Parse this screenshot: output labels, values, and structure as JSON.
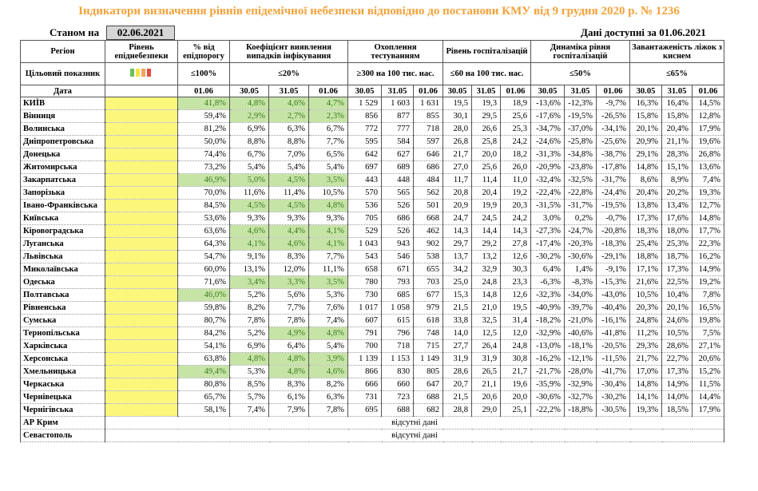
{
  "title": "Індикатори визначення рівнів епідемічної небезпеки відповідно до постанови КМУ від 9 грудня 2020 р. № 1236",
  "as_of_label": "Станом на",
  "as_of_date": "02.06.2021",
  "available_label": "Дані доступні за",
  "available_date": "01.06.2021",
  "headers": {
    "region": "Регіон",
    "level": "Рівень епіднебезпеки",
    "pct": "% від епідпорогу",
    "coef": "Коефіцієнт виявлення випадків інфікування",
    "tests": "Охоплення тестуванням",
    "hosp": "Рівень госпіталізацій",
    "dyn": "Динаміка рівня госпіталізацій",
    "beds": "Завантаженість ліжок з киснем",
    "target": "Цільовий показник",
    "date": "Дата",
    "t_pct": "≤100%",
    "t_coef": "≤20%",
    "t_tests": "≥300 на 100 тис. нас.",
    "t_hosp": "≤60 на 100 тис. нас.",
    "t_dyn": "≤50%",
    "t_beds": "≤65%"
  },
  "dates": {
    "pct": [
      "01.06"
    ],
    "coef": [
      "30.05",
      "31.05",
      "01.06"
    ],
    "tests": [
      "30.05",
      "31.05",
      "01.06"
    ],
    "hosp": [
      "30.05",
      "31.05",
      "01.06"
    ],
    "dyn": [
      "30.05",
      "31.05",
      "01.06"
    ],
    "beds": [
      "30.05",
      "31.05",
      "01.06"
    ]
  },
  "swatch_colors": [
    "#6bbf59",
    "#f5e04a",
    "#f7a35c",
    "#e84c3d"
  ],
  "regions": [
    {
      "name": "КИЇВ",
      "pct": "41,8%",
      "coef": [
        "4,8%",
        "4,6%",
        "4,7%"
      ],
      "tests": [
        "1 529",
        "1 603",
        "1 631"
      ],
      "hosp": [
        "19,5",
        "19,3",
        "18,9"
      ],
      "dyn": [
        "-13,6%",
        "-12,3%",
        "-9,7%"
      ],
      "beds": [
        "16,3%",
        "16,4%",
        "14,5%"
      ],
      "g": [
        1,
        1,
        1,
        1
      ]
    },
    {
      "name": "Вінниця",
      "pct": "59,4%",
      "coef": [
        "2,9%",
        "2,7%",
        "2,3%"
      ],
      "tests": [
        "856",
        "877",
        "855"
      ],
      "hosp": [
        "30,1",
        "29,5",
        "25,6"
      ],
      "dyn": [
        "-17,6%",
        "-19,5%",
        "-26,5%"
      ],
      "beds": [
        "15,8%",
        "15,8%",
        "12,8%"
      ],
      "g": [
        0,
        1,
        1,
        1
      ]
    },
    {
      "name": "Волинська",
      "pct": "81,2%",
      "coef": [
        "6,9%",
        "6,3%",
        "6,7%"
      ],
      "tests": [
        "772",
        "777",
        "718"
      ],
      "hosp": [
        "28,0",
        "26,6",
        "25,3"
      ],
      "dyn": [
        "-34,7%",
        "-37,0%",
        "-34,1%"
      ],
      "beds": [
        "20,1%",
        "20,4%",
        "17,9%"
      ],
      "g": [
        0,
        0,
        0,
        0
      ]
    },
    {
      "name": "Дніпропетровська",
      "pct": "50,0%",
      "coef": [
        "8,8%",
        "8,8%",
        "7,7%"
      ],
      "tests": [
        "595",
        "584",
        "597"
      ],
      "hosp": [
        "26,8",
        "25,8",
        "24,2"
      ],
      "dyn": [
        "-24,6%",
        "-25,8%",
        "-25,6%"
      ],
      "beds": [
        "20,9%",
        "21,1%",
        "19,6%"
      ],
      "g": [
        0,
        0,
        0,
        0
      ]
    },
    {
      "name": "Донецька",
      "pct": "74,4%",
      "coef": [
        "6,7%",
        "7,0%",
        "6,5%"
      ],
      "tests": [
        "642",
        "627",
        "646"
      ],
      "hosp": [
        "21,7",
        "20,0",
        "18,2"
      ],
      "dyn": [
        "-31,3%",
        "-34,8%",
        "-38,7%"
      ],
      "beds": [
        "29,1%",
        "28,3%",
        "26,8%"
      ],
      "g": [
        0,
        0,
        0,
        0
      ]
    },
    {
      "name": "Житомирська",
      "pct": "73,2%",
      "coef": [
        "5,4%",
        "5,4%",
        "5,4%"
      ],
      "tests": [
        "697",
        "689",
        "686"
      ],
      "hosp": [
        "27,0",
        "25,6",
        "26,0"
      ],
      "dyn": [
        "-20,9%",
        "-23,8%",
        "-17,8%"
      ],
      "beds": [
        "14,8%",
        "15,1%",
        "13,6%"
      ],
      "g": [
        0,
        0,
        0,
        0
      ]
    },
    {
      "name": "Закарпатська",
      "pct": "46,9%",
      "coef": [
        "5,0%",
        "4,5%",
        "3,5%"
      ],
      "tests": [
        "443",
        "448",
        "484"
      ],
      "hosp": [
        "11,7",
        "11,4",
        "11,0"
      ],
      "dyn": [
        "-32,4%",
        "-32,5%",
        "-31,7%"
      ],
      "beds": [
        "8,6%",
        "8,9%",
        "7,4%"
      ],
      "g": [
        1,
        1,
        1,
        1
      ]
    },
    {
      "name": "Запорізька",
      "pct": "70,0%",
      "coef": [
        "11,6%",
        "11,4%",
        "10,5%"
      ],
      "tests": [
        "570",
        "565",
        "562"
      ],
      "hosp": [
        "20,8",
        "20,4",
        "19,2"
      ],
      "dyn": [
        "-22,4%",
        "-22,8%",
        "-24,4%"
      ],
      "beds": [
        "20,4%",
        "20,2%",
        "19,3%"
      ],
      "g": [
        0,
        0,
        0,
        0
      ]
    },
    {
      "name": "Івано-Франківська",
      "pct": "84,5%",
      "coef": [
        "4,5%",
        "4,5%",
        "4,8%"
      ],
      "tests": [
        "536",
        "526",
        "501"
      ],
      "hosp": [
        "20,9",
        "19,9",
        "20,3"
      ],
      "dyn": [
        "-31,5%",
        "-31,7%",
        "-19,5%"
      ],
      "beds": [
        "13,8%",
        "13,4%",
        "12,7%"
      ],
      "g": [
        0,
        1,
        1,
        1
      ]
    },
    {
      "name": "Київська",
      "pct": "53,6%",
      "coef": [
        "9,3%",
        "9,3%",
        "9,3%"
      ],
      "tests": [
        "705",
        "686",
        "668"
      ],
      "hosp": [
        "24,7",
        "24,5",
        "24,2"
      ],
      "dyn": [
        "3,0%",
        "0,2%",
        "-0,7%"
      ],
      "beds": [
        "17,3%",
        "17,6%",
        "14,8%"
      ],
      "g": [
        0,
        0,
        0,
        0
      ]
    },
    {
      "name": "Кіровоградська",
      "pct": "63,6%",
      "coef": [
        "4,6%",
        "4,4%",
        "4,1%"
      ],
      "tests": [
        "529",
        "526",
        "462"
      ],
      "hosp": [
        "14,3",
        "14,4",
        "14,3"
      ],
      "dyn": [
        "-27,3%",
        "-24,7%",
        "-20,8%"
      ],
      "beds": [
        "18,3%",
        "18,0%",
        "17,7%"
      ],
      "g": [
        0,
        1,
        1,
        1
      ]
    },
    {
      "name": "Луганська",
      "pct": "64,3%",
      "coef": [
        "4,1%",
        "4,6%",
        "4,1%"
      ],
      "tests": [
        "1 043",
        "943",
        "902"
      ],
      "hosp": [
        "29,7",
        "29,2",
        "27,8"
      ],
      "dyn": [
        "-17,4%",
        "-20,3%",
        "-18,3%"
      ],
      "beds": [
        "25,4%",
        "25,3%",
        "22,3%"
      ],
      "g": [
        0,
        1,
        1,
        1
      ]
    },
    {
      "name": "Львівська",
      "pct": "54,7%",
      "coef": [
        "9,1%",
        "8,3%",
        "7,7%"
      ],
      "tests": [
        "543",
        "546",
        "538"
      ],
      "hosp": [
        "13,7",
        "13,2",
        "12,6"
      ],
      "dyn": [
        "-30,2%",
        "-30,6%",
        "-29,1%"
      ],
      "beds": [
        "18,8%",
        "18,7%",
        "16,2%"
      ],
      "g": [
        0,
        0,
        0,
        0
      ]
    },
    {
      "name": "Миколаївська",
      "pct": "60,0%",
      "coef": [
        "13,1%",
        "12,0%",
        "11,1%"
      ],
      "tests": [
        "658",
        "671",
        "655"
      ],
      "hosp": [
        "34,2",
        "32,9",
        "30,3"
      ],
      "dyn": [
        "6,4%",
        "1,4%",
        "-9,1%"
      ],
      "beds": [
        "17,1%",
        "17,3%",
        "14,9%"
      ],
      "g": [
        0,
        0,
        0,
        0
      ]
    },
    {
      "name": "Одеська",
      "pct": "71,6%",
      "coef": [
        "3,4%",
        "3,3%",
        "3,5%"
      ],
      "tests": [
        "780",
        "793",
        "703"
      ],
      "hosp": [
        "25,0",
        "24,8",
        "23,3"
      ],
      "dyn": [
        "-6,3%",
        "-8,3%",
        "-15,3%"
      ],
      "beds": [
        "21,6%",
        "22,5%",
        "19,2%"
      ],
      "g": [
        0,
        1,
        1,
        1
      ]
    },
    {
      "name": "Полтавська",
      "pct": "46,0%",
      "coef": [
        "5,2%",
        "5,6%",
        "5,3%"
      ],
      "tests": [
        "730",
        "685",
        "677"
      ],
      "hosp": [
        "15,3",
        "14,8",
        "12,6"
      ],
      "dyn": [
        "-32,3%",
        "-34,0%",
        "-43,0%"
      ],
      "beds": [
        "10,5%",
        "10,4%",
        "7,8%"
      ],
      "g": [
        1,
        0,
        0,
        0
      ]
    },
    {
      "name": "Рівненська",
      "pct": "59,8%",
      "coef": [
        "8,2%",
        "7,7%",
        "7,6%"
      ],
      "tests": [
        "1 017",
        "1 058",
        "979"
      ],
      "hosp": [
        "21,5",
        "21,0",
        "19,5"
      ],
      "dyn": [
        "-40,9%",
        "-39,7%",
        "-40,4%"
      ],
      "beds": [
        "20,3%",
        "20,1%",
        "16,5%"
      ],
      "g": [
        0,
        0,
        0,
        0
      ]
    },
    {
      "name": "Сумська",
      "pct": "80,7%",
      "coef": [
        "7,8%",
        "7,8%",
        "7,4%"
      ],
      "tests": [
        "607",
        "615",
        "618"
      ],
      "hosp": [
        "33,8",
        "32,5",
        "31,4"
      ],
      "dyn": [
        "-18,2%",
        "-21,0%",
        "-16,1%"
      ],
      "beds": [
        "24,8%",
        "24,6%",
        "19,8%"
      ],
      "g": [
        0,
        0,
        0,
        0
      ]
    },
    {
      "name": "Тернопільська",
      "pct": "84,2%",
      "coef": [
        "5,2%",
        "4,9%",
        "4,8%"
      ],
      "tests": [
        "791",
        "796",
        "748"
      ],
      "hosp": [
        "14,0",
        "12,5",
        "12,0"
      ],
      "dyn": [
        "-32,9%",
        "-40,6%",
        "-41,8%"
      ],
      "beds": [
        "11,2%",
        "10,5%",
        "7,5%"
      ],
      "g": [
        0,
        0,
        1,
        1
      ]
    },
    {
      "name": "Харківська",
      "pct": "54,1%",
      "coef": [
        "6,9%",
        "6,4%",
        "5,4%"
      ],
      "tests": [
        "700",
        "718",
        "715"
      ],
      "hosp": [
        "27,7",
        "26,4",
        "24,8"
      ],
      "dyn": [
        "-13,0%",
        "-18,1%",
        "-20,5%"
      ],
      "beds": [
        "29,3%",
        "28,6%",
        "27,1%"
      ],
      "g": [
        0,
        0,
        0,
        0
      ]
    },
    {
      "name": "Херсонська",
      "pct": "63,8%",
      "coef": [
        "4,8%",
        "4,8%",
        "3,9%"
      ],
      "tests": [
        "1 139",
        "1 153",
        "1 149"
      ],
      "hosp": [
        "31,9",
        "31,9",
        "30,8"
      ],
      "dyn": [
        "-16,2%",
        "-12,1%",
        "-11,5%"
      ],
      "beds": [
        "21,7%",
        "22,7%",
        "20,6%"
      ],
      "g": [
        0,
        1,
        1,
        1
      ]
    },
    {
      "name": "Хмельницька",
      "pct": "49,4%",
      "coef": [
        "5,3%",
        "4,8%",
        "4,6%"
      ],
      "tests": [
        "866",
        "830",
        "805"
      ],
      "hosp": [
        "28,6",
        "26,5",
        "21,7"
      ],
      "dyn": [
        "-21,7%",
        "-28,0%",
        "-41,7%"
      ],
      "beds": [
        "17,0%",
        "17,3%",
        "15,2%"
      ],
      "g": [
        1,
        0,
        1,
        1
      ]
    },
    {
      "name": "Черкаська",
      "pct": "80,8%",
      "coef": [
        "8,5%",
        "8,3%",
        "8,2%"
      ],
      "tests": [
        "666",
        "660",
        "647"
      ],
      "hosp": [
        "20,7",
        "21,1",
        "19,6"
      ],
      "dyn": [
        "-35,9%",
        "-32,9%",
        "-30,4%"
      ],
      "beds": [
        "14,8%",
        "14,9%",
        "11,5%"
      ],
      "g": [
        0,
        0,
        0,
        0
      ]
    },
    {
      "name": "Чернівецька",
      "pct": "65,7%",
      "coef": [
        "5,7%",
        "6,1%",
        "6,3%"
      ],
      "tests": [
        "731",
        "723",
        "688"
      ],
      "hosp": [
        "21,5",
        "20,6",
        "20,0"
      ],
      "dyn": [
        "-30,6%",
        "-32,7%",
        "-30,2%"
      ],
      "beds": [
        "14,1%",
        "14,0%",
        "14,4%"
      ],
      "g": [
        0,
        0,
        0,
        0
      ]
    },
    {
      "name": "Чернігівська",
      "pct": "58,1%",
      "coef": [
        "7,4%",
        "7,9%",
        "7,8%"
      ],
      "tests": [
        "695",
        "688",
        "682"
      ],
      "hosp": [
        "28,8",
        "29,0",
        "25,1"
      ],
      "dyn": [
        "-22,2%",
        "-18,8%",
        "-30,5%"
      ],
      "beds": [
        "19,3%",
        "18,5%",
        "17,9%"
      ],
      "g": [
        0,
        0,
        0,
        0
      ]
    }
  ],
  "missing": [
    {
      "name": "АР Крим",
      "note": "відсутні дані"
    },
    {
      "name": "Севастополь",
      "note": "відсутні дані"
    }
  ]
}
